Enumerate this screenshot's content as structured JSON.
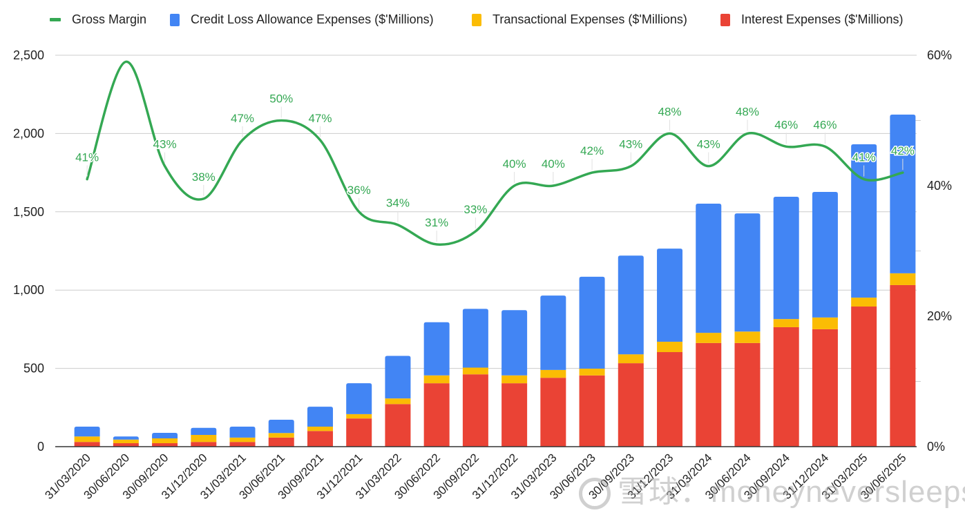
{
  "chart_data": {
    "type": "bar",
    "stacked": true,
    "title": "",
    "xlabel": "",
    "ylabel": "",
    "y2label": "",
    "categories": [
      "31/03/2020",
      "30/06/2020",
      "30/09/2020",
      "31/12/2020",
      "31/03/2021",
      "30/06/2021",
      "30/09/2021",
      "31/12/2021",
      "31/03/2022",
      "30/06/2022",
      "30/09/2022",
      "31/12/2022",
      "31/03/2023",
      "30/06/2023",
      "30/09/2023",
      "31/12/2023",
      "31/03/2024",
      "30/06/2024",
      "30/09/2024",
      "31/12/2024",
      "31/03/2025",
      "30/06/2025"
    ],
    "series": [
      {
        "name": "Interest Expenses ($'Millions)",
        "type": "bar",
        "axis": "left",
        "color": "#EA4335",
        "values": [
          30,
          22,
          22,
          30,
          30,
          58,
          100,
          180,
          272,
          405,
          462,
          405,
          440,
          455,
          533,
          604,
          662,
          662,
          763,
          750,
          895,
          1032
        ]
      },
      {
        "name": "Transactional Expenses ($'Millions)",
        "type": "bar",
        "axis": "left",
        "color": "#FBBC04",
        "values": [
          35,
          23,
          31,
          45,
          28,
          29,
          28,
          28,
          36,
          50,
          43,
          50,
          50,
          43,
          57,
          66,
          65,
          73,
          52,
          75,
          57,
          75
        ]
      },
      {
        "name": "Credit Loss Allowance Expenses ($'Millions)",
        "type": "bar",
        "axis": "left",
        "color": "#4285F4",
        "values": [
          63,
          20,
          35,
          45,
          70,
          85,
          127,
          197,
          272,
          340,
          375,
          417,
          475,
          587,
          630,
          595,
          825,
          755,
          781,
          802,
          979,
          1014
        ]
      },
      {
        "name": "Gross Margin",
        "type": "line",
        "axis": "right",
        "color": "#34A853",
        "smooth": true,
        "values": [
          41,
          59,
          43,
          38,
          47,
          50,
          47,
          36,
          34,
          31,
          33,
          40,
          40,
          42,
          43,
          48,
          43,
          48,
          46,
          46,
          41,
          42
        ],
        "labels": [
          "41%",
          "",
          "43%",
          "38%",
          "47%",
          "50%",
          "47%",
          "36%",
          "34%",
          "31%",
          "33%",
          "40%",
          "40%",
          "42%",
          "43%",
          "48%",
          "43%",
          "48%",
          "46%",
          "46%",
          "41%",
          "42%"
        ]
      }
    ],
    "legend_order": [
      "Gross Margin",
      "Credit Loss Allowance Expenses ($'Millions)",
      "Transactional Expenses ($'Millions)",
      "Interest Expenses ($'Millions)"
    ],
    "legend_position": "top",
    "ylim": [
      0,
      2500
    ],
    "yticks": [
      0,
      500,
      1000,
      1500,
      2000,
      2500
    ],
    "ytick_labels": [
      "0",
      "500",
      "1,000",
      "1,500",
      "2,000",
      "2,500"
    ],
    "y2lim": [
      0,
      60
    ],
    "y2ticks": [
      0,
      20,
      40,
      60
    ],
    "y2tick_labels": [
      "0%",
      "20%",
      "40%",
      "60%"
    ],
    "grid": true,
    "gridline_color": "#cccccc"
  },
  "legend": {
    "items": [
      {
        "label": "Gross Margin",
        "color": "#34A853",
        "kind": "line"
      },
      {
        "label": "Credit Loss Allowance Expenses ($'Millions)",
        "color": "#4285F4",
        "kind": "box"
      },
      {
        "label": "Transactional Expenses ($'Millions)",
        "color": "#FBBC04",
        "kind": "box"
      },
      {
        "label": "Interest Expenses ($'Millions)",
        "color": "#EA4335",
        "kind": "box"
      }
    ]
  },
  "watermark": {
    "text": "雪球：moneyneversleeps"
  }
}
